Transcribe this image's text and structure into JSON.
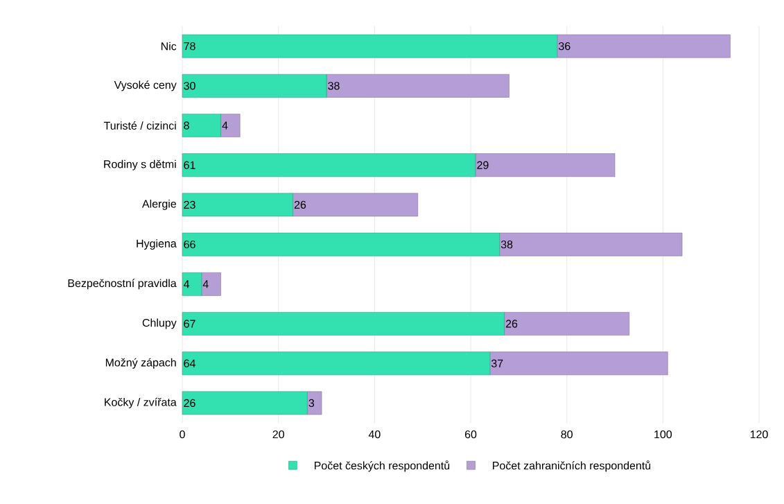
{
  "chart_data": {
    "type": "bar",
    "orientation": "horizontal",
    "stacked": true,
    "categories": [
      "Nic",
      "Vysoké ceny",
      "Turisté / cizinci",
      "Rodiny s dětmi",
      "Alergie",
      "Hygiena",
      "Bezpečnostní pravidla",
      "Chlupy",
      "Možný zápach",
      "Kočky / zvířata"
    ],
    "series": [
      {
        "name": "Počet českých respondentů",
        "color": "#33e0b0",
        "values": [
          78,
          30,
          8,
          61,
          23,
          66,
          4,
          67,
          64,
          26
        ]
      },
      {
        "name": "Počet zahraničních respondentů",
        "color": "#b59dd6",
        "values": [
          36,
          38,
          4,
          29,
          26,
          38,
          4,
          26,
          37,
          3
        ]
      }
    ],
    "xlim": [
      0,
      120
    ],
    "xticks": [
      0,
      20,
      40,
      60,
      80,
      100,
      120
    ],
    "grid": "x",
    "legend": "bottom",
    "data_labels": true
  }
}
